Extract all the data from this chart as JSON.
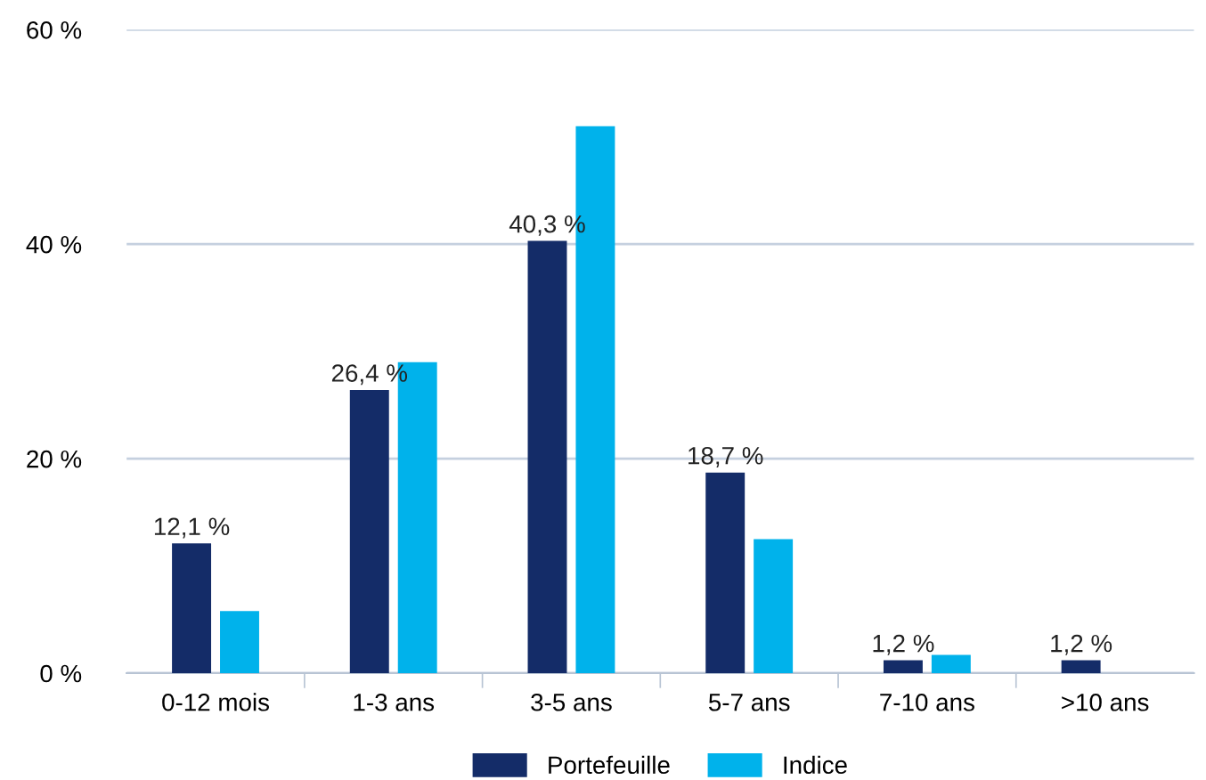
{
  "chart_data": {
    "type": "bar",
    "categories": [
      "0-12 mois",
      "1-3 ans",
      "3-5 ans",
      "5-7 ans",
      "7-10 ans",
      ">10 ans"
    ],
    "series": [
      {
        "name": "Portefeuille",
        "color": "#142c68",
        "values": [
          12.1,
          26.4,
          40.3,
          18.7,
          1.2,
          1.2
        ],
        "value_labels": [
          "12,1 %",
          "26,4 %",
          "40,3 %",
          "18,7 %",
          "1,2 %",
          "1,2 %"
        ]
      },
      {
        "name": "Indice",
        "color": "#00b2eb",
        "values": [
          5.8,
          29,
          51,
          12.5,
          1.7,
          0
        ]
      }
    ],
    "ylim": [
      0,
      60
    ],
    "yticks": [
      {
        "value": 0,
        "label": "0 %"
      },
      {
        "value": 20,
        "label": "20 %"
      },
      {
        "value": 40,
        "label": "40 %"
      },
      {
        "value": 60,
        "label": "60 %"
      }
    ],
    "grid": "y",
    "legend": "bottom"
  }
}
